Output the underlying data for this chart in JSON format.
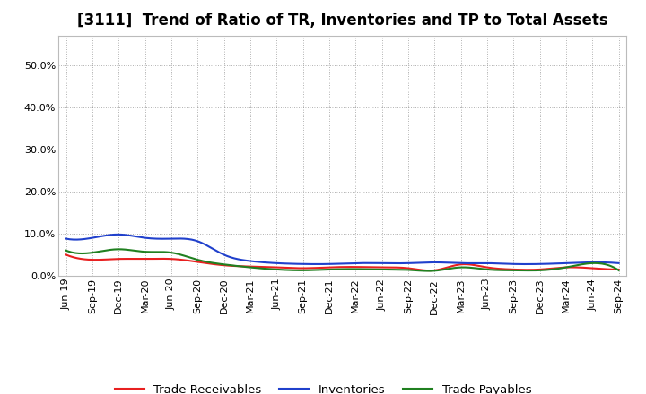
{
  "title": "[3111]  Trend of Ratio of TR, Inventories and TP to Total Assets",
  "labels": [
    "Jun-19",
    "Sep-19",
    "Dec-19",
    "Mar-20",
    "Jun-20",
    "Sep-20",
    "Dec-20",
    "Mar-21",
    "Jun-21",
    "Sep-21",
    "Dec-21",
    "Mar-22",
    "Jun-22",
    "Sep-22",
    "Dec-22",
    "Mar-23",
    "Jun-23",
    "Sep-23",
    "Dec-23",
    "Mar-24",
    "Jun-24",
    "Sep-24"
  ],
  "trade_receivables": [
    0.05,
    0.038,
    0.04,
    0.04,
    0.04,
    0.033,
    0.025,
    0.022,
    0.02,
    0.018,
    0.02,
    0.021,
    0.02,
    0.018,
    0.013,
    0.027,
    0.02,
    0.015,
    0.015,
    0.02,
    0.018,
    0.015
  ],
  "inventories": [
    0.088,
    0.09,
    0.098,
    0.09,
    0.088,
    0.082,
    0.05,
    0.035,
    0.03,
    0.028,
    0.028,
    0.03,
    0.03,
    0.03,
    0.032,
    0.03,
    0.03,
    0.028,
    0.028,
    0.03,
    0.032,
    0.03
  ],
  "trade_payables": [
    0.06,
    0.055,
    0.063,
    0.057,
    0.055,
    0.038,
    0.027,
    0.02,
    0.015,
    0.013,
    0.015,
    0.016,
    0.015,
    0.014,
    0.012,
    0.02,
    0.015,
    0.013,
    0.013,
    0.02,
    0.03,
    0.013
  ],
  "tr_color": "#e82020",
  "inv_color": "#2040cc",
  "tp_color": "#208020",
  "tr_label": "Trade Receivables",
  "inv_label": "Inventories",
  "tp_label": "Trade Payables",
  "ylim": [
    0.0,
    0.57
  ],
  "yticks": [
    0.0,
    0.1,
    0.2,
    0.3,
    0.4,
    0.5
  ],
  "background_color": "#ffffff",
  "plot_bg_color": "#ffffff",
  "grid_color": "#999999",
  "title_fontsize": 12,
  "legend_fontsize": 9.5,
  "tick_fontsize": 8,
  "linewidth": 1.5
}
